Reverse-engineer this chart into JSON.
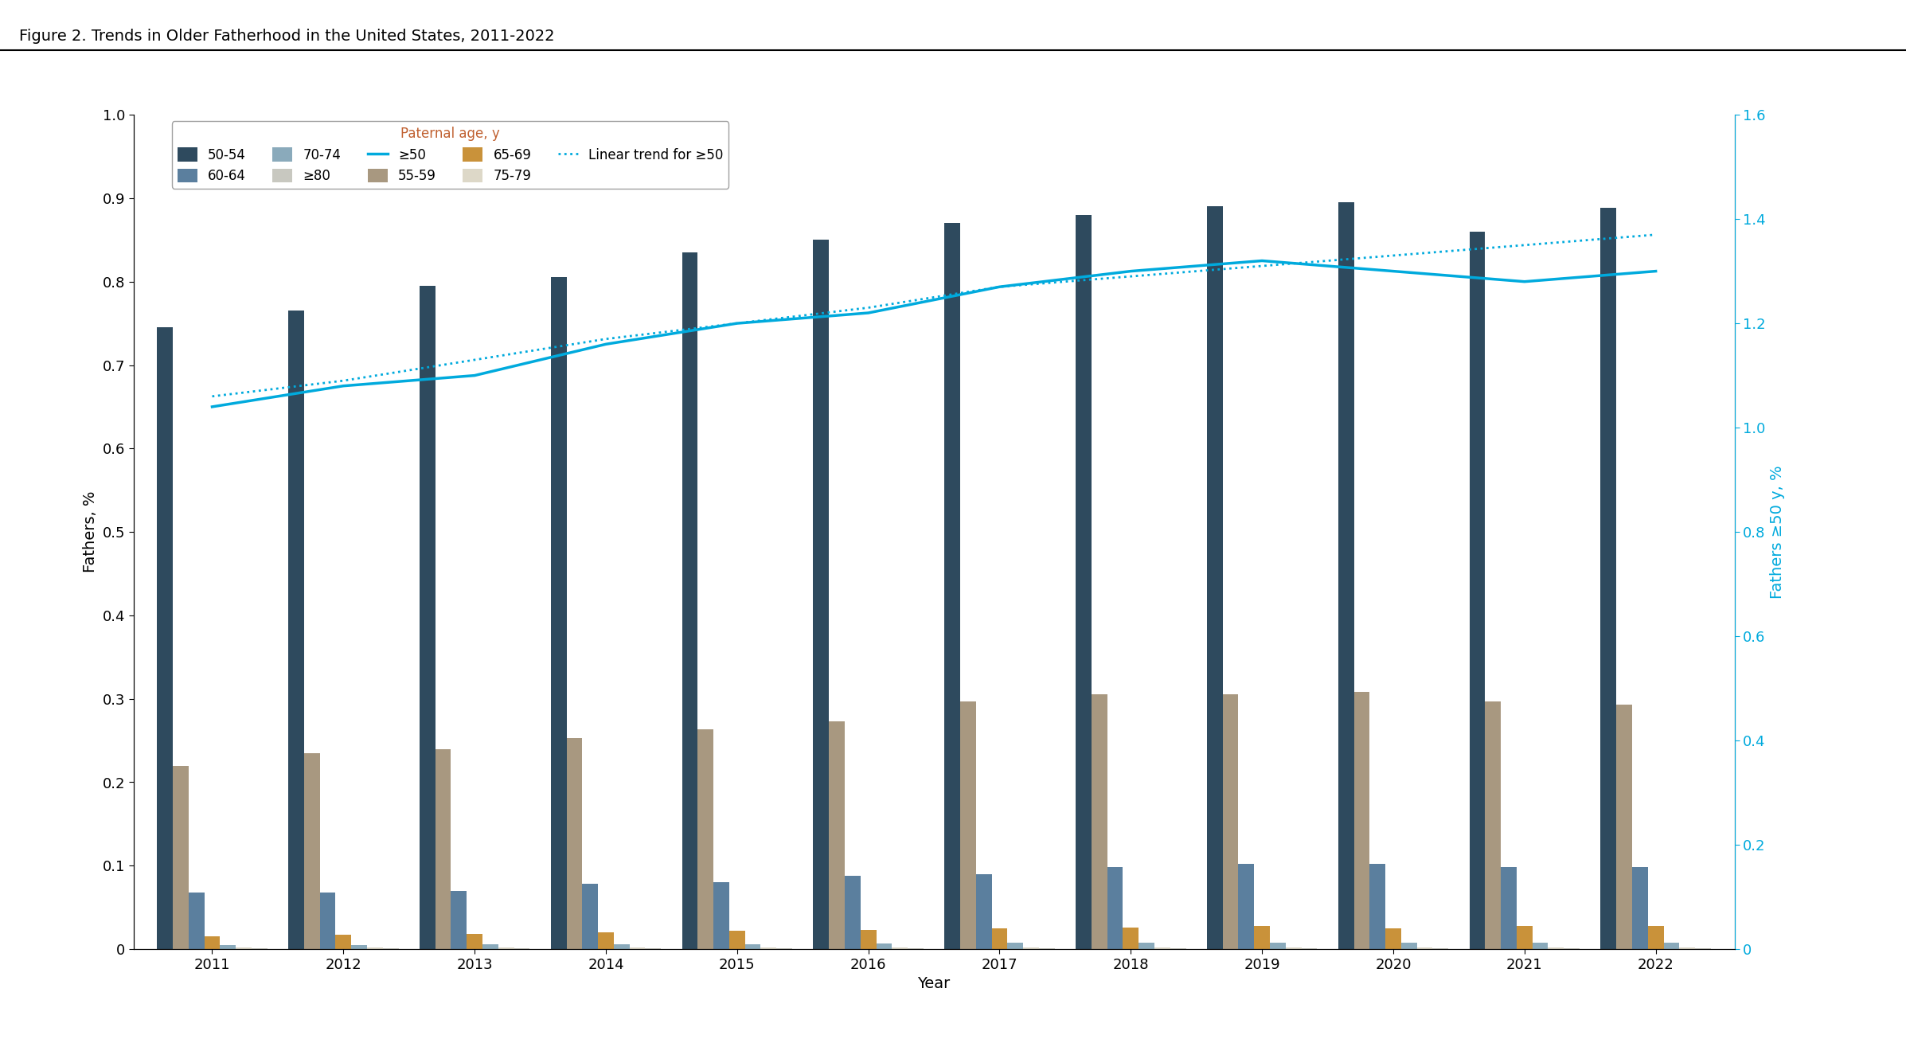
{
  "title": "Figure 2. Trends in Older Fatherhood in the United States, 2011-2022",
  "title_bar_color": "#d63068",
  "years": [
    2011,
    2012,
    2013,
    2014,
    2015,
    2016,
    2017,
    2018,
    2019,
    2020,
    2021,
    2022
  ],
  "bar_data": {
    "50-54": [
      0.745,
      0.765,
      0.795,
      0.805,
      0.835,
      0.85,
      0.87,
      0.88,
      0.89,
      0.895,
      0.86,
      0.888
    ],
    "55-59": [
      0.22,
      0.235,
      0.24,
      0.253,
      0.263,
      0.273,
      0.297,
      0.305,
      0.305,
      0.308,
      0.297,
      0.293
    ],
    "60-64": [
      0.068,
      0.068,
      0.07,
      0.078,
      0.08,
      0.088,
      0.09,
      0.098,
      0.102,
      0.102,
      0.098,
      0.098
    ],
    "65-69": [
      0.015,
      0.017,
      0.018,
      0.02,
      0.022,
      0.023,
      0.025,
      0.026,
      0.028,
      0.025,
      0.028,
      0.028
    ],
    "70-74": [
      0.005,
      0.005,
      0.006,
      0.006,
      0.006,
      0.007,
      0.008,
      0.008,
      0.008,
      0.008,
      0.008,
      0.008
    ],
    "75-79": [
      0.002,
      0.002,
      0.002,
      0.002,
      0.002,
      0.002,
      0.002,
      0.002,
      0.002,
      0.002,
      0.002,
      0.002
    ],
    "≥80": [
      0.001,
      0.001,
      0.001,
      0.001,
      0.001,
      0.001,
      0.001,
      0.001,
      0.001,
      0.001,
      0.001,
      0.001
    ]
  },
  "bar_colors": {
    "50-54": "#2e4a5e",
    "55-59": "#a89880",
    "60-64": "#5b7f9e",
    "65-69": "#c9923a",
    "70-74": "#8aaabb",
    "75-79": "#ddd8c8",
    "≥80": "#c8c8c0"
  },
  "line_ge50": [
    1.04,
    1.08,
    1.1,
    1.16,
    1.2,
    1.22,
    1.27,
    1.3,
    1.32,
    1.3,
    1.28,
    1.3
  ],
  "linear_trend_ge50": [
    1.06,
    1.09,
    1.13,
    1.17,
    1.2,
    1.23,
    1.27,
    1.29,
    1.31,
    1.33,
    1.35,
    1.37
  ],
  "line_color": "#00aadd",
  "ylabel_left": "Fathers, %",
  "ylabel_right": "Fathers ≥50 y, %",
  "xlabel": "Year",
  "ylim_left": [
    0,
    1.0
  ],
  "ylim_right": [
    0,
    1.6
  ],
  "background_color": "#ffffff",
  "header_line_color": "#000000",
  "legend_title": "Paternal age, y"
}
